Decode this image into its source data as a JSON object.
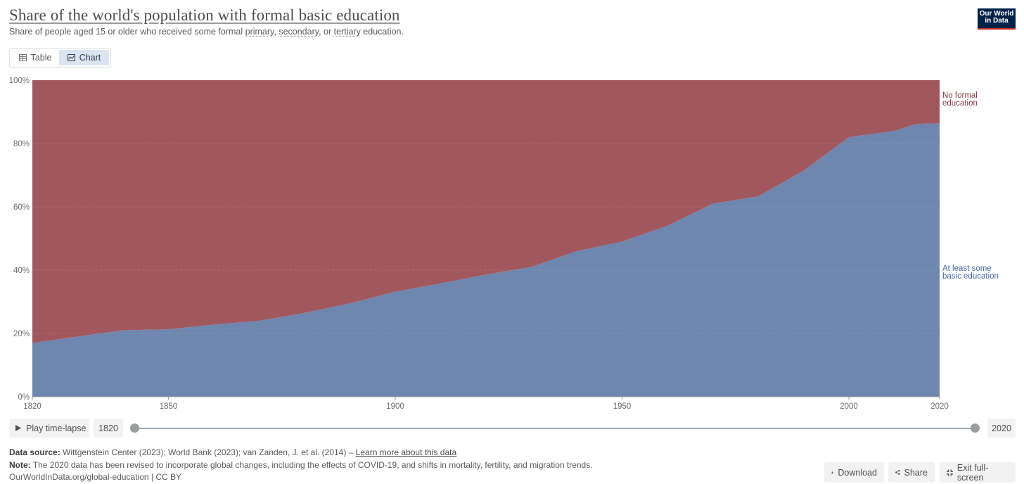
{
  "header": {
    "title": "Share of the world's population with formal basic education",
    "subtitle_prefix": "Share of people aged 15 or older who received some formal ",
    "term1": "primary",
    "sep1": ", ",
    "term2": "secondary",
    "sep2": ", or ",
    "term3": "tertiary",
    "subtitle_suffix": " education.",
    "logo_line1": "Our World",
    "logo_line2": "in Data"
  },
  "tabs": {
    "table": "Table",
    "chart": "Chart"
  },
  "chart_data": {
    "type": "area",
    "stacked": true,
    "x": [
      1820,
      1830,
      1840,
      1850,
      1860,
      1870,
      1880,
      1890,
      1900,
      1910,
      1920,
      1930,
      1940,
      1950,
      1960,
      1970,
      1980,
      1990,
      2000,
      2010,
      2015,
      2020
    ],
    "series": [
      {
        "name": "At least some basic education",
        "color": "#6f86ae",
        "values": [
          17,
          19,
          21,
          21.3,
          22.8,
          24,
          26.5,
          29.5,
          33.2,
          35.8,
          38.6,
          41,
          46,
          49,
          54,
          61,
          63.3,
          71.4,
          82,
          84,
          86.2,
          86.4
        ]
      },
      {
        "name": "No formal education",
        "color": "#a0585e",
        "values": [
          83,
          81,
          79,
          78.7,
          77.2,
          76,
          73.5,
          70.5,
          66.8,
          64.2,
          61.4,
          59,
          54,
          51,
          46,
          39,
          36.7,
          28.6,
          18,
          16,
          13.8,
          13.6
        ]
      }
    ],
    "legend": [
      "No formal education",
      "At least some basic education"
    ],
    "legend_lines": [
      [
        "No formal",
        "education"
      ],
      [
        "At least some",
        "basic education"
      ]
    ],
    "xlim": [
      1820,
      2020
    ],
    "ylim": [
      0,
      100
    ],
    "y_ticks": [
      0,
      20,
      40,
      60,
      80,
      100
    ],
    "y_tick_labels": [
      "0%",
      "20%",
      "40%",
      "60%",
      "80%",
      "100%"
    ],
    "x_ticks": [
      1820,
      1850,
      1900,
      1950,
      2000,
      2020
    ],
    "x_tick_labels": [
      "1820",
      "1850",
      "1900",
      "1950",
      "2000",
      "2020"
    ],
    "grid": true
  },
  "controls": {
    "play_label": "Play time-lapse",
    "start_year": "1820",
    "end_year": "2020"
  },
  "footer": {
    "source_label": "Data source:",
    "source_text": " Wittgenstein Center (2023); World Bank (2023); van Zanden, J. et al. (2014) – ",
    "source_link": "Learn more about this data",
    "note_label": "Note:",
    "note_text": " The 2020 data has been revised to incorporate global changes, including the effects of COVID-19, and shifts in mortality, fertility, and migration trends.",
    "credit": "OurWorldInData.org/global-education | CC BY"
  },
  "actions": {
    "download": "Download",
    "share": "Share",
    "exit_fullscreen": "Exit full-screen"
  }
}
